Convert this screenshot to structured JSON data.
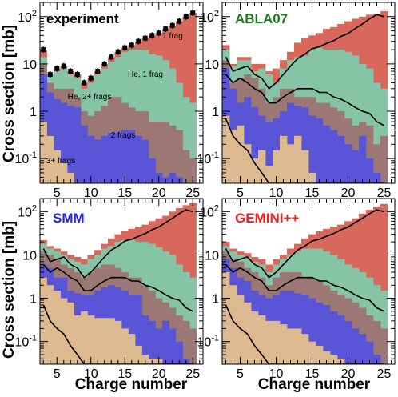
{
  "figure": {
    "ylabel": "Cross section [mb]",
    "xlabel": "Charge number"
  },
  "colors": {
    "one_frag": "#d9685c",
    "he_one_frag": "#86c4a8",
    "he_two_plus": "#9c7875",
    "two_frags": "#5a55d6",
    "three_plus": "#ddb98f",
    "title_experiment": "#000000",
    "title_abla": "#1a7a1a",
    "title_smm": "#2222ee",
    "title_gemini": "#ee2222"
  },
  "chart_data": [
    {
      "type": "area",
      "title": "experiment",
      "x": [
        3,
        4,
        5,
        6,
        7,
        8,
        9,
        10,
        11,
        12,
        13,
        14,
        15,
        16,
        17,
        18,
        19,
        20,
        21,
        22,
        23,
        24,
        25
      ],
      "xlim": [
        2.5,
        26.5
      ],
      "ylim": [
        0.03,
        200
      ],
      "yscale": "log",
      "xticks": [
        5,
        10,
        15,
        20,
        25
      ],
      "yticks": [
        "10^-1",
        "1",
        "10",
        "10^2"
      ],
      "series": [
        {
          "name": "3+ frags",
          "values": [
            0.6,
            0.3,
            0.15,
            0.08,
            0.05,
            0.03,
            0.03,
            0.03,
            0.03,
            0.03,
            0.03,
            0.03,
            0.03,
            0.03,
            0.03,
            0.03,
            0.03,
            0.03,
            0.03,
            0.03,
            0.03,
            0.03,
            0.03
          ]
        },
        {
          "name": "2 frags",
          "values": [
            6,
            2.5,
            1.8,
            1.5,
            1.3,
            1.2,
            0.5,
            0.3,
            0.25,
            0.3,
            0.35,
            0.35,
            0.4,
            0.4,
            0.3,
            0.25,
            0.1,
            0.05,
            0.04,
            0.05,
            0.04,
            0.03,
            0.03
          ]
        },
        {
          "name": "He, 2+ frags",
          "values": [
            10,
            4,
            3,
            3,
            3,
            2,
            1,
            0.8,
            1,
            1.3,
            2,
            2,
            1.5,
            1.2,
            1,
            1,
            0.6,
            0.6,
            0.6,
            0.5,
            0.4,
            0.15,
            0.1
          ]
        },
        {
          "name": "He, 1 frag",
          "values": [
            14,
            6,
            7,
            8,
            6,
            5,
            3,
            4,
            6,
            8,
            11,
            14,
            18,
            20,
            20,
            20,
            16,
            15,
            12,
            8,
            4,
            2,
            1.5
          ]
        },
        {
          "name": "1 frag",
          "values": [
            20,
            6,
            8,
            9,
            7,
            6,
            4,
            5,
            7,
            10,
            14,
            18,
            22,
            25,
            30,
            35,
            40,
            45,
            55,
            65,
            80,
            100,
            120
          ]
        }
      ],
      "model_lines": []
    },
    {
      "type": "area",
      "title": "ABLA07",
      "x": [
        3,
        4,
        5,
        6,
        7,
        8,
        9,
        10,
        11,
        12,
        13,
        14,
        15,
        16,
        17,
        18,
        19,
        20,
        21,
        22,
        23,
        24,
        25
      ],
      "xlim": [
        2.5,
        26.5
      ],
      "ylim": [
        0.03,
        200
      ],
      "yscale": "log",
      "xticks": [
        5,
        10,
        15,
        20,
        25
      ],
      "yticks": [
        "10^-1",
        "1",
        "10",
        "10^2"
      ],
      "series": [
        {
          "name": "3+ frags",
          "values": [
            0.8,
            0.4,
            0.5,
            0.2,
            0.1,
            0.15,
            0.07,
            0.15,
            0.3,
            0.2,
            0.3,
            0.15,
            0.05,
            0.03,
            0.03,
            0.03,
            0.03,
            0.03,
            0.03,
            0.03,
            0.03,
            0.03,
            0.03
          ]
        },
        {
          "name": "2 frags",
          "values": [
            8,
            3,
            1.5,
            2,
            1.2,
            0.8,
            0.6,
            0.7,
            1,
            1.5,
            1.3,
            1.2,
            0.8,
            0.7,
            0.5,
            0.4,
            0.3,
            0.2,
            0.15,
            0.3,
            0.1,
            0.05,
            0.03
          ]
        },
        {
          "name": "He, 2+ frags",
          "values": [
            12,
            4,
            5,
            6,
            5,
            3,
            1.5,
            2,
            3,
            3,
            2,
            2,
            2,
            1.5,
            1.5,
            1.2,
            1,
            0.7,
            0.5,
            0.6,
            0.5,
            0.2,
            0.3
          ]
        },
        {
          "name": "He, 1 frag",
          "values": [
            20,
            9,
            12,
            12,
            7,
            8,
            6,
            4,
            8,
            12,
            14,
            15,
            20,
            22,
            20,
            20,
            20,
            18,
            15,
            10,
            8,
            4,
            3
          ]
        },
        {
          "name": "1 frag",
          "values": [
            25,
            10,
            14,
            14,
            10,
            10,
            7,
            8,
            12,
            18,
            28,
            35,
            40,
            45,
            55,
            60,
            70,
            80,
            90,
            100,
            110,
            115,
            130
          ]
        }
      ],
      "model_lines": [
        [
          14,
          7,
          8,
          9,
          6,
          5,
          3,
          4,
          6,
          9,
          13,
          16,
          21,
          23,
          27,
          31,
          38,
          44,
          56,
          70,
          90,
          110,
          100
        ],
        [
          6,
          4,
          5,
          4,
          3,
          2.5,
          1.5,
          1.5,
          2,
          2.5,
          3,
          3,
          3,
          2.5,
          2.5,
          2,
          1.8,
          1.5,
          1.2,
          1,
          0.9,
          0.6,
          0.5
        ],
        [
          0.7,
          0.3,
          0.2,
          0.15,
          0.08,
          0.05,
          0.03,
          0.03,
          0.03,
          0.03,
          0.03,
          0.03,
          0.03,
          0.03,
          0.03,
          0.03,
          0.03,
          0.03,
          0.03,
          0.03,
          0.03,
          0.03,
          0.03
        ]
      ]
    },
    {
      "type": "area",
      "title": "SMM",
      "x": [
        3,
        4,
        5,
        6,
        7,
        8,
        9,
        10,
        11,
        12,
        13,
        14,
        15,
        16,
        17,
        18,
        19,
        20,
        21,
        22,
        23,
        24,
        25
      ],
      "xlim": [
        2.5,
        26.5
      ],
      "ylim": [
        0.03,
        200
      ],
      "yscale": "log",
      "xticks": [
        5,
        10,
        15,
        20,
        25
      ],
      "yticks": [
        "10^-1",
        "1",
        "10",
        "10^2"
      ],
      "series": [
        {
          "name": "3+ frags",
          "values": [
            3,
            2,
            1.5,
            1,
            0.8,
            0.4,
            0.5,
            0.4,
            0.35,
            0.35,
            0.35,
            0.3,
            0.2,
            0.15,
            0.08,
            0.05,
            0.04,
            0.04,
            0.03,
            0.03,
            0.03,
            0.03,
            0.03
          ]
        },
        {
          "name": "2 frags",
          "values": [
            6,
            5,
            3,
            3,
            1.5,
            1.3,
            1.2,
            1.2,
            1.5,
            1.8,
            2,
            1.8,
            1.5,
            1.2,
            1.2,
            0.4,
            0.3,
            0.2,
            0.3,
            0.2,
            0.1,
            0.04,
            0.03
          ]
        },
        {
          "name": "He, 2+ frags",
          "values": [
            12,
            10,
            8,
            6,
            5,
            4,
            3,
            4,
            5,
            6,
            6,
            5,
            4,
            3,
            3,
            2,
            1.5,
            1,
            0.8,
            0.6,
            0.4,
            0.3,
            0.2
          ]
        },
        {
          "name": "He, 1 frag",
          "values": [
            18,
            14,
            12,
            10,
            8,
            7,
            6,
            8,
            10,
            14,
            16,
            20,
            22,
            22,
            20,
            20,
            18,
            15,
            12,
            10,
            6,
            4,
            3
          ]
        },
        {
          "name": "1 frag",
          "values": [
            22,
            16,
            14,
            12,
            10,
            9,
            8,
            10,
            13,
            18,
            24,
            30,
            36,
            40,
            45,
            50,
            60,
            70,
            80,
            100,
            120,
            140,
            160
          ]
        }
      ],
      "model_lines": [
        [
          14,
          7,
          8,
          9,
          6,
          5,
          3,
          4,
          6,
          9,
          13,
          16,
          21,
          23,
          27,
          31,
          38,
          44,
          56,
          70,
          90,
          110,
          100
        ],
        [
          6,
          4,
          5,
          4,
          3,
          2.5,
          1.5,
          1.5,
          2,
          2.5,
          3,
          3,
          3,
          2.5,
          2.5,
          2,
          1.8,
          1.5,
          1.2,
          1,
          0.9,
          0.6,
          0.5
        ],
        [
          0.7,
          0.3,
          0.2,
          0.15,
          0.08,
          0.05,
          0.03,
          0.03,
          0.03,
          0.03,
          0.03,
          0.03,
          0.03,
          0.03,
          0.03,
          0.03,
          0.03,
          0.03,
          0.03,
          0.03,
          0.03,
          0.03,
          0.03
        ]
      ]
    },
    {
      "type": "area",
      "title": "GEMINI++",
      "x": [
        3,
        4,
        5,
        6,
        7,
        8,
        9,
        10,
        11,
        12,
        13,
        14,
        15,
        16,
        17,
        18,
        19,
        20,
        21,
        22,
        23,
        24,
        25
      ],
      "xlim": [
        2.5,
        26.5
      ],
      "ylim": [
        0.03,
        200
      ],
      "yscale": "log",
      "xticks": [
        5,
        10,
        15,
        20,
        25
      ],
      "yticks": [
        "10^-1",
        "1",
        "10",
        "10^2"
      ],
      "series": [
        {
          "name": "3+ frags",
          "values": [
            4,
            2,
            1.2,
            0.8,
            0.5,
            0.4,
            0.3,
            0.3,
            0.25,
            0.2,
            0.2,
            0.15,
            0.1,
            0.08,
            0.06,
            0.05,
            0.04,
            0.03,
            0.03,
            0.03,
            0.03,
            0.03,
            0.03
          ]
        },
        {
          "name": "2 frags",
          "values": [
            8,
            5,
            3,
            2.5,
            1.5,
            1.2,
            1,
            1.2,
            1.5,
            1.5,
            1.3,
            1.2,
            1,
            0.8,
            0.7,
            0.5,
            0.4,
            0.3,
            0.2,
            0.15,
            0.1,
            0.05,
            0.03
          ]
        },
        {
          "name": "He, 2+ frags",
          "values": [
            12,
            8,
            7,
            5,
            4,
            3,
            2,
            3,
            4,
            4,
            4,
            3,
            3,
            2.5,
            2,
            1.5,
            1.2,
            1,
            0.8,
            0.6,
            0.4,
            0.3,
            0.2
          ]
        },
        {
          "name": "He, 1 frag",
          "values": [
            16,
            12,
            10,
            9,
            7,
            6,
            4,
            6,
            8,
            10,
            12,
            14,
            14,
            14,
            12,
            10,
            8,
            6,
            5,
            4,
            3,
            2,
            1.5
          ]
        },
        {
          "name": "1 frag",
          "values": [
            20,
            14,
            12,
            11,
            9,
            8,
            6,
            8,
            10,
            14,
            18,
            24,
            30,
            35,
            40,
            45,
            50,
            60,
            70,
            90,
            110,
            130,
            150
          ]
        }
      ],
      "model_lines": [
        [
          14,
          7,
          8,
          9,
          6,
          5,
          3,
          4,
          6,
          9,
          13,
          16,
          21,
          23,
          27,
          31,
          38,
          44,
          56,
          70,
          90,
          110,
          100
        ],
        [
          6,
          4,
          5,
          4,
          3,
          2.5,
          1.5,
          1.5,
          2,
          2.5,
          3,
          3,
          3,
          2.5,
          2.5,
          2,
          1.8,
          1.5,
          1.2,
          1,
          0.9,
          0.6,
          0.5
        ],
        [
          0.7,
          0.3,
          0.2,
          0.15,
          0.08,
          0.05,
          0.03,
          0.03,
          0.03,
          0.03,
          0.03,
          0.03,
          0.03,
          0.03,
          0.03,
          0.03,
          0.03,
          0.03,
          0.03,
          0.03,
          0.03,
          0.03,
          0.03
        ]
      ]
    }
  ],
  "annotations": {
    "one_frag": "1 frag",
    "he_one_frag": "He, 1 frag",
    "he_two_plus": "He, 2+ frags",
    "two_frags": "2 frags",
    "three_plus": "3+ frags"
  }
}
